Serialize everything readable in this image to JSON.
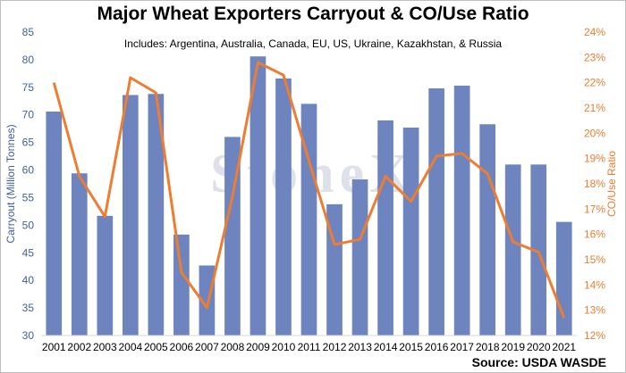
{
  "source": "Source: USDA WASDE",
  "watermark": "StoneX",
  "colors": {
    "bars": "#6d84bf",
    "line": "#ed7d31",
    "left_axis": "#3f5f9f",
    "right_axis": "#ed7d31"
  },
  "chart_data": {
    "type": "bar",
    "title": "Major Wheat Exporters Carryout & CO/Use Ratio",
    "subtitle": "Includes: Argentina, Australia, Canada, EU, US, Ukraine, Kazakhstan, & Russia",
    "categories": [
      "2001",
      "2002",
      "2003",
      "2004",
      "2005",
      "2006",
      "2007",
      "2008",
      "2009",
      "2010",
      "2011",
      "2012",
      "2013",
      "2014",
      "2015",
      "2016",
      "2017",
      "2018",
      "2019",
      "2020",
      "2021"
    ],
    "series": [
      {
        "type": "bar",
        "axis": "left",
        "values": [
          70.6,
          59.4,
          51.7,
          73.6,
          73.8,
          48.3,
          42.7,
          66.0,
          80.6,
          76.6,
          72.0,
          53.8,
          58.3,
          69.0,
          67.7,
          74.8,
          75.3,
          68.3,
          61.0,
          61.0,
          50.6
        ]
      },
      {
        "type": "line",
        "axis": "right",
        "values": [
          22.0,
          18.3,
          16.7,
          22.2,
          21.6,
          14.5,
          13.1,
          17.5,
          22.8,
          22.3,
          18.9,
          15.6,
          15.8,
          18.3,
          17.3,
          19.1,
          19.2,
          18.4,
          15.7,
          15.3,
          12.7
        ]
      }
    ],
    "ylabel": "Carryout (Million Tonnes)",
    "y2label": "CO/Use Ratio",
    "ylim": [
      30,
      85
    ],
    "y2lim": [
      12,
      24
    ],
    "yticks": [
      "30",
      "35",
      "40",
      "45",
      "50",
      "55",
      "60",
      "65",
      "70",
      "75",
      "80",
      "85"
    ],
    "y2ticks": [
      "12%",
      "13%",
      "14%",
      "15%",
      "16%",
      "17%",
      "18%",
      "19%",
      "20%",
      "21%",
      "22%",
      "23%",
      "24%"
    ],
    "grid": false,
    "legend": "none"
  }
}
